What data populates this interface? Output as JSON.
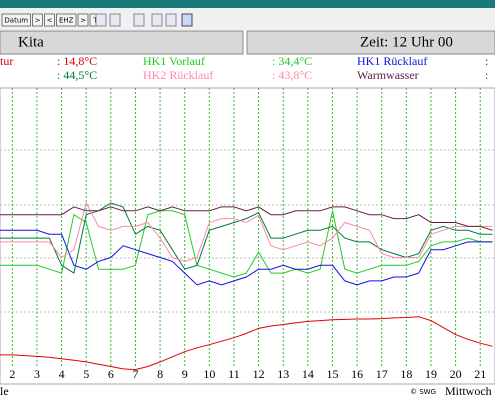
{
  "toolbar": [
    "Datum",
    ">",
    "<",
    "EHZ",
    ">",
    "TA"
  ],
  "header": {
    "site": "Kita",
    "time": "Zeit: 12 Uhr 00"
  },
  "footer": {
    "left": "le",
    "copyright": "© SWG",
    "day": "Mittwoch"
  },
  "chart_data": {
    "type": "line",
    "x": [
      1.5,
      2,
      2.5,
      3,
      3.5,
      4,
      4.5,
      5,
      5.5,
      6,
      6.5,
      7,
      7.5,
      8,
      8.5,
      9,
      9.5,
      10,
      10.5,
      11,
      11.5,
      12,
      12.5,
      13,
      13.5,
      14,
      14.5,
      15,
      15.5,
      16,
      16.5,
      17,
      17.5,
      18,
      18.5,
      19,
      19.5,
      20,
      20.5,
      21,
      21.5
    ],
    "xlim": [
      1.5,
      21.6
    ],
    "xticks": [
      2,
      3,
      4,
      5,
      6,
      7,
      8,
      9,
      10,
      11,
      12,
      13,
      14,
      15,
      16,
      17,
      18,
      19,
      20,
      21
    ],
    "ylim": [
      0,
      75
    ],
    "grid": true,
    "series": [
      {
        "name": "tur",
        "reading": ": 14,8°C",
        "color": "#e00000",
        "values": [
          8,
          8,
          7.8,
          7.6,
          7.4,
          7,
          6.6,
          6.2,
          5.6,
          5,
          4.4,
          4.2,
          5,
          6.2,
          7.5,
          8.8,
          9.8,
          10.6,
          11.5,
          12.4,
          13.5,
          14.8,
          15.4,
          15.8,
          16.2,
          16.6,
          16.8,
          17,
          17.1,
          17.2,
          17.2,
          17.3,
          17.5,
          17.6,
          17.8,
          16.8,
          15,
          13.2,
          12,
          11,
          10.2
        ]
      },
      {
        "name": "HK1 Vorlauf",
        "reading": ": 34,4°C",
        "color": "#22cc22",
        "values": [
          31,
          31,
          31,
          31,
          30,
          29,
          44,
          42,
          30,
          30,
          30,
          31,
          44,
          45,
          45,
          44,
          31,
          30,
          29,
          28,
          29,
          34.4,
          29,
          29,
          30,
          29,
          30,
          45,
          30,
          29,
          30,
          31,
          31,
          31,
          32,
          36,
          37,
          37,
          38,
          37,
          37
        ]
      },
      {
        "name": "HK1 Rücklauf",
        "reading": ":",
        "color": "#1010e0",
        "values": [
          40,
          40,
          40,
          40,
          39,
          39,
          31,
          30,
          32,
          33,
          36,
          35,
          34,
          33,
          32,
          29,
          26,
          27,
          26,
          27,
          28,
          30,
          30,
          31,
          30,
          30,
          31,
          31,
          27,
          26,
          27,
          27,
          28,
          28,
          29,
          35,
          35,
          36,
          37,
          37,
          37
        ]
      },
      {
        "reading": ": 44,5°C",
        "color": "#007a3a",
        "values": [
          38,
          38,
          38,
          38,
          38,
          31,
          29,
          44,
          45,
          47,
          46,
          39,
          41,
          40,
          35,
          30,
          31,
          40,
          41,
          42,
          43,
          44.5,
          38,
          38,
          39,
          40,
          40,
          41,
          38,
          37,
          37,
          35,
          34,
          33,
          34,
          40,
          41,
          40,
          40,
          39,
          39
        ]
      },
      {
        "name": "HK2 Rücklauf",
        "reading": ": 43,8°C",
        "color": "#ff88aa",
        "values": [
          37,
          37,
          37,
          37,
          37,
          33,
          35,
          47,
          41,
          40,
          41,
          41,
          42,
          38,
          33,
          32,
          33,
          42,
          43,
          43,
          42,
          43.8,
          36,
          35,
          36,
          37,
          36,
          38,
          42,
          41,
          40,
          34,
          33,
          33,
          33,
          39,
          40,
          41,
          41,
          41,
          41
        ]
      },
      {
        "name": "Warmwasser",
        "reading": ":",
        "color": "#602040",
        "values": [
          44,
          44,
          44,
          44,
          44,
          44,
          46,
          45,
          45,
          46,
          45,
          45,
          46,
          45,
          46,
          45,
          45,
          45,
          46,
          46,
          45,
          46,
          44,
          44,
          45,
          45,
          45,
          46,
          46,
          45,
          44,
          44,
          43,
          43,
          44,
          42,
          42,
          42,
          41,
          41,
          40
        ]
      }
    ]
  }
}
